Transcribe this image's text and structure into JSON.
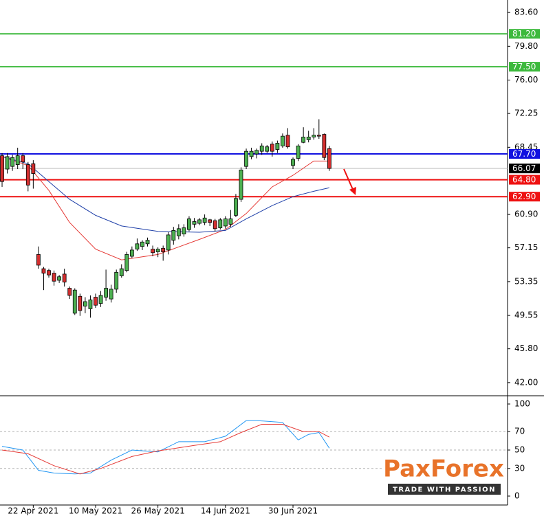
{
  "chart_data": [
    {
      "type": "candlestick",
      "open": [
        67.5,
        66.0,
        66.3,
        66.5,
        67.5,
        66.5,
        66.6,
        56.4,
        54.8,
        54.6,
        54.3,
        53.5,
        54.2,
        52.6,
        49.8,
        51.7,
        50.6,
        50.3,
        51.6,
        50.9,
        51.6,
        51.4,
        52.5,
        54.0,
        54.6,
        56.2,
        57.0,
        57.3,
        57.6,
        57.0,
        56.7,
        57.1,
        56.9,
        58.0,
        58.5,
        58.7,
        59.2,
        59.8,
        59.9,
        60.0,
        60.3,
        60.2,
        59.4,
        59.6,
        59.8,
        60.8,
        62.6,
        66.3,
        67.4,
        67.7,
        68.0,
        68.0,
        68.8,
        68.2,
        68.6,
        69.8,
        66.4,
        67.2,
        69.0,
        69.3,
        69.6,
        69.8,
        69.9,
        68.3
      ],
      "high": [
        67.8,
        67.8,
        67.6,
        68.4,
        67.8,
        66.8,
        67.0,
        57.3,
        55.0,
        54.8,
        54.6,
        54.1,
        54.8,
        52.8,
        52.6,
        52.0,
        51.6,
        51.8,
        52.0,
        52.3,
        54.7,
        53.0,
        54.7,
        55.3,
        56.7,
        57.3,
        58.2,
        58.0,
        58.3,
        57.4,
        57.2,
        57.4,
        58.9,
        59.5,
        59.8,
        59.8,
        60.7,
        60.5,
        60.5,
        60.9,
        60.4,
        60.4,
        60.5,
        60.7,
        61.4,
        63.2,
        66.2,
        68.3,
        68.4,
        68.3,
        68.9,
        68.7,
        69.1,
        69.2,
        70.0,
        70.6,
        67.3,
        68.8,
        70.7,
        70.3,
        70.6,
        71.6,
        70.0,
        68.6
      ],
      "low": [
        64.0,
        65.5,
        65.8,
        66.0,
        66.0,
        63.5,
        63.8,
        54.8,
        52.4,
        53.8,
        52.9,
        53.2,
        52.8,
        51.4,
        49.6,
        49.5,
        49.8,
        49.3,
        50.4,
        50.5,
        51.2,
        51.0,
        52.1,
        53.8,
        54.4,
        56.0,
        56.8,
        56.9,
        57.3,
        56.2,
        56.1,
        55.7,
        56.4,
        57.5,
        58.1,
        58.4,
        59.0,
        59.4,
        59.7,
        59.7,
        59.6,
        59.0,
        59.2,
        59.3,
        59.5,
        60.6,
        62.3,
        66.0,
        67.1,
        67.2,
        67.6,
        67.8,
        67.4,
        67.8,
        68.4,
        68.3,
        66.0,
        66.9,
        68.9,
        69.0,
        69.3,
        69.4,
        67.0,
        65.8
      ],
      "close": [
        64.6,
        67.4,
        67.3,
        67.5,
        66.8,
        64.2,
        65.5,
        55.2,
        54.3,
        54.1,
        53.4,
        53.9,
        53.3,
        51.8,
        52.4,
        50.1,
        51.1,
        51.3,
        50.7,
        51.8,
        52.6,
        52.5,
        54.4,
        54.8,
        56.4,
        56.9,
        57.6,
        57.8,
        58.0,
        56.6,
        57.0,
        56.7,
        58.6,
        59.1,
        59.3,
        59.4,
        60.4,
        60.1,
        60.3,
        60.5,
        60.0,
        59.3,
        60.3,
        60.4,
        60.4,
        62.7,
        65.9,
        68.0,
        68.0,
        68.1,
        68.6,
        68.5,
        68.0,
        68.9,
        69.7,
        68.5,
        67.1,
        68.6,
        69.6,
        69.6,
        69.8,
        69.7,
        67.3,
        66.07
      ],
      "up_color": "#4caf50",
      "down_color": "#d32f2f",
      "moving_averages": [
        {
          "color": "#e53935",
          "x": [
            0,
            5,
            9,
            13,
            18,
            23,
            30,
            38,
            43,
            47,
            52,
            56,
            60,
            63
          ],
          "values": [
            67.4,
            66.4,
            63.6,
            60.0,
            57.0,
            55.8,
            56.4,
            58.1,
            59.2,
            61.0,
            64.0,
            65.3,
            66.9,
            66.9
          ]
        },
        {
          "color": "#1e3fa8",
          "x": [
            0,
            5,
            9,
            13,
            18,
            23,
            30,
            38,
            43,
            47,
            52,
            56,
            60,
            63
          ],
          "values": [
            67.4,
            66.6,
            64.6,
            62.6,
            60.8,
            59.6,
            59.0,
            58.9,
            59.1,
            60.4,
            61.9,
            62.9,
            63.5,
            63.9
          ]
        }
      ],
      "levels": [
        {
          "value": 81.2,
          "label": "81.20",
          "color": "#3cb93c"
        },
        {
          "value": 77.5,
          "label": "77.50",
          "color": "#3cb93c"
        },
        {
          "value": 67.7,
          "label": "67.70",
          "color": "#1010e0"
        },
        {
          "value": 64.8,
          "label": "64.80",
          "color": "#ee1111"
        },
        {
          "value": 62.9,
          "label": "62.90",
          "color": "#ee1111"
        }
      ],
      "last_price": 66.07,
      "xlim": [
        -0.4,
        97.3
      ],
      "ylim": [
        40.6,
        85.0
      ],
      "yticks": [
        {
          "value": 83.6,
          "label": "83.60"
        },
        {
          "value": 79.8,
          "label": "79.80"
        },
        {
          "value": 76.0,
          "label": "76.00"
        },
        {
          "value": 72.25,
          "label": "72.25"
        },
        {
          "value": 68.45,
          "label": "68.45"
        },
        {
          "value": 60.9,
          "label": "60.90"
        },
        {
          "value": 57.15,
          "label": "57.15"
        },
        {
          "value": 53.35,
          "label": "53.35"
        },
        {
          "value": 49.55,
          "label": "49.55"
        },
        {
          "value": 45.8,
          "label": "45.80"
        },
        {
          "value": 42.0,
          "label": "42.00"
        }
      ],
      "xticks": [
        {
          "value": 6,
          "label": "22 Apr 2021"
        },
        {
          "value": 18,
          "label": "10 May 2021"
        },
        {
          "value": 30,
          "label": "26 May 2021"
        },
        {
          "value": 43,
          "label": "14 Jun 2021"
        },
        {
          "value": 56,
          "label": "30 Jun 2021"
        }
      ]
    },
    {
      "type": "line",
      "series": [
        {
          "color": "#2196f3",
          "x": [
            0,
            4,
            7,
            10,
            14,
            17,
            21,
            25,
            30,
            34,
            39,
            43,
            47,
            49,
            54,
            57,
            59,
            61,
            63
          ],
          "values": [
            54,
            50,
            28,
            25,
            24,
            25,
            39,
            50,
            48,
            59,
            59,
            65,
            82,
            82,
            80,
            61,
            67,
            69,
            52
          ]
        },
        {
          "color": "#e53935",
          "x": [
            0,
            5,
            10,
            15,
            19,
            25,
            30,
            37,
            42,
            46,
            50,
            54,
            58,
            61,
            63
          ],
          "values": [
            50,
            46,
            33,
            24,
            30,
            43,
            49,
            55,
            59,
            69,
            78,
            78,
            70,
            70,
            64
          ]
        }
      ],
      "xlim": [
        -0.4,
        97.3
      ],
      "ylim": [
        -9.7,
        108.2
      ],
      "yticks": [
        100,
        70,
        50,
        30,
        0
      ],
      "grid_lines": [
        70,
        50,
        30
      ]
    }
  ],
  "logo": {
    "name": "PaxForex",
    "tagline": "TRADE WITH PASSION"
  }
}
